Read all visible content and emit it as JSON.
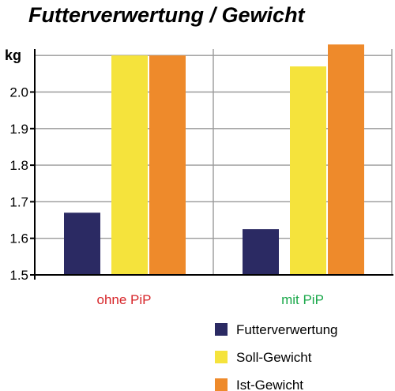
{
  "chart_data": {
    "type": "bar",
    "title": "Futterverwertung / Gewicht",
    "ylabel": "kg",
    "xlabel": "",
    "ylim": [
      1.5,
      2.13
    ],
    "yticks": [
      "1.5",
      "1.6",
      "1.7",
      "1.8",
      "1.9",
      "2.0"
    ],
    "ytick_values": [
      1.5,
      1.6,
      1.7,
      1.8,
      1.9,
      2.0
    ],
    "categories": [
      "ohne PiP",
      "mit PiP"
    ],
    "category_colors": [
      "#d7262a",
      "#1aa84a"
    ],
    "grid": true,
    "legend_position": "bottom-right",
    "series": [
      {
        "name": "Futterverwertung",
        "color": "#2b2a63",
        "values": [
          1.67,
          1.625
        ]
      },
      {
        "name": "Soll-Gewicht",
        "color": "#f5e33c",
        "values": [
          2.1,
          2.07
        ]
      },
      {
        "name": "Ist-Gewicht",
        "color": "#ee8a2b",
        "values": [
          2.1,
          2.13
        ]
      }
    ]
  }
}
